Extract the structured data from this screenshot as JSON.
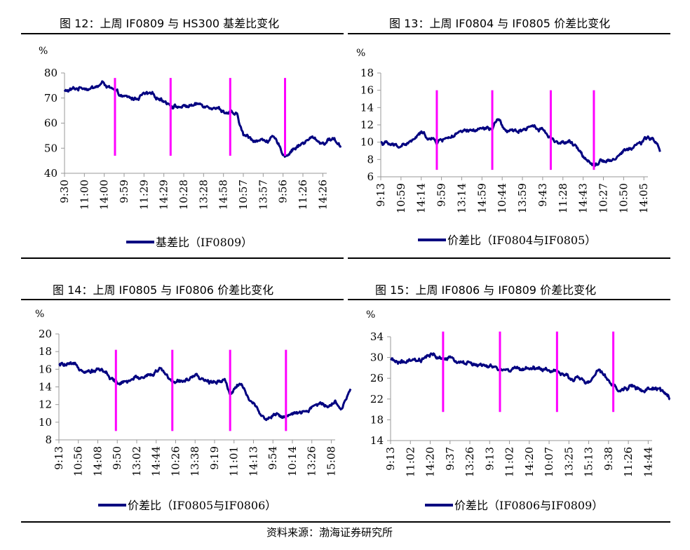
{
  "source": "资料来源：渤海证券研究所",
  "chart_data": [
    {
      "type": "line",
      "title": "图 12：上周 IF0809 与 HS300 基差比变化",
      "ylabel": "%",
      "ylim": [
        40,
        80
      ],
      "yticks": [
        "40",
        "50",
        "60",
        "70",
        "80"
      ],
      "xticks": [
        "9:30",
        "11:00",
        "14:00",
        "9:59",
        "11:29",
        "14:29",
        "10:28",
        "13:28",
        "14:58",
        "10:57",
        "13:57",
        "9:56",
        "11:26",
        "14:26"
      ],
      "day_markers": [
        2.54,
        5.34,
        8.34,
        11.1
      ],
      "marker_range": [
        47,
        78
      ],
      "n_points": 440,
      "series": [
        {
          "name": "基差比（IF0809）",
          "color": "#000080",
          "x": [
            0,
            0.5,
            1,
            1.5,
            2,
            2.54,
            3,
            3.5,
            4,
            4.5,
            5,
            5.34,
            5.8,
            6.3,
            7,
            7.5,
            8,
            8.34,
            8.7,
            9,
            9.5,
            10,
            10.5,
            11.1,
            11.5,
            12,
            12.5,
            13,
            13.5,
            13.9
          ],
          "values": [
            72.5,
            73.5,
            74.5,
            74,
            76,
            72,
            70,
            69.5,
            71.5,
            70.5,
            69.5,
            67.5,
            66.5,
            67,
            67.5,
            67,
            65,
            64,
            62.5,
            55,
            53.5,
            53,
            54,
            47,
            50,
            52,
            54,
            52,
            54,
            51
          ]
        }
      ],
      "legend": "bottom"
    },
    {
      "type": "line",
      "title": "图 13：上周 IF0804 与 IF0805 价差比变化",
      "ylabel": "%",
      "ylim": [
        6,
        18
      ],
      "yticks": [
        "6",
        "8",
        "10",
        "12",
        "14",
        "16",
        "18"
      ],
      "xticks": [
        "9:13",
        "10:59",
        "14:14",
        "9:59",
        "13:14",
        "14:59",
        "10:44",
        "13:59",
        "9:43",
        "11:28",
        "14:43",
        "10:27",
        "10:50",
        "14:05"
      ],
      "day_markers": [
        2.77,
        5.51,
        8.4,
        10.53
      ],
      "marker_range": [
        6.8,
        16
      ],
      "n_points": 440,
      "series": [
        {
          "name": "价差比（IF0804与IF0805）",
          "color": "#000080",
          "x": [
            0,
            0.7,
            1.5,
            2,
            2.77,
            3.2,
            4,
            4.5,
            5,
            5.51,
            5.8,
            6.3,
            7,
            7.5,
            8,
            8.4,
            8.8,
            9.3,
            10,
            10.53,
            10.9,
            11.5,
            12,
            12.5,
            13,
            13.4,
            13.8
          ],
          "values": [
            10,
            9.5,
            10,
            11,
            10,
            10.5,
            11,
            11.2,
            11.5,
            11.5,
            12.5,
            11,
            11.5,
            12,
            11.5,
            10.5,
            10,
            10,
            8.5,
            7.5,
            8,
            8,
            9,
            9.5,
            10.2,
            10.5,
            9
          ]
        }
      ],
      "legend": "bottom"
    },
    {
      "type": "line",
      "title": "图 14：上周 IF0805 与 IF0806 价差比变化",
      "ylabel": "%",
      "ylim": [
        8,
        20
      ],
      "yticks": [
        "8",
        "10",
        "12",
        "14",
        "16",
        "18",
        "20"
      ],
      "xticks": [
        "9:13",
        "10:56",
        "14:08",
        "9:50",
        "13:02",
        "14:44",
        "10:26",
        "13:38",
        "9:19",
        "11:01",
        "14:13",
        "9:54",
        "10:14",
        "13:26",
        "15:08"
      ],
      "day_markers": [
        2.93,
        5.83,
        8.8,
        11.67
      ],
      "marker_range": [
        9,
        18.2
      ],
      "n_points": 470,
      "series": [
        {
          "name": "价差比（IF0805与IF0806）",
          "color": "#000080",
          "x": [
            0,
            0.7,
            1.5,
            2.2,
            2.93,
            3.3,
            4,
            4.6,
            5.3,
            5.83,
            6.3,
            7,
            7.8,
            8.5,
            8.8,
            9.3,
            10,
            10.6,
            11.2,
            11.67,
            12,
            12.6,
            13.3,
            13.8,
            14.2,
            14.5,
            14.8,
            15
          ],
          "values": [
            16.5,
            16.3,
            16,
            16,
            14.5,
            14.3,
            15,
            15.5,
            16,
            14.5,
            14.8,
            15,
            14.5,
            15,
            13.3,
            14.5,
            12,
            10.5,
            11,
            10.5,
            10.8,
            11,
            12,
            12,
            12.5,
            11.5,
            13,
            13.5
          ]
        }
      ],
      "legend": "bottom"
    },
    {
      "type": "line",
      "title": "图 15：上周 IF0806 与 IF0809 价差比变化",
      "ylabel": "%",
      "ylim": [
        14,
        34
      ],
      "yticks": [
        "14",
        "18",
        "22",
        "26",
        "30",
        "34"
      ],
      "xticks": [
        "9:13",
        "11:02",
        "14:20",
        "9:37",
        "13:26",
        "9:13",
        "11:02",
        "14:20",
        "10:07",
        "13:25",
        "15:13",
        "9:38",
        "11:26",
        "14:44"
      ],
      "day_markers": [
        2.65,
        5.52,
        8.4,
        11.24
      ],
      "marker_range": [
        19.5,
        35
      ],
      "n_points": 450,
      "series": [
        {
          "name": "价差比（IF0806与IF0809）",
          "color": "#000080",
          "x": [
            0,
            0.7,
            1.5,
            2,
            2.65,
            3,
            3.8,
            4.5,
            5,
            5.52,
            6,
            6.8,
            7.5,
            8,
            8.4,
            8.8,
            9.5,
            10,
            10.5,
            11.24,
            11.6,
            12.2,
            12.8,
            13.5,
            13.9,
            14.1
          ],
          "values": [
            29.3,
            29,
            29.2,
            30.3,
            29.8,
            29.5,
            29,
            28.5,
            28,
            27.5,
            27.5,
            28,
            28,
            27.5,
            27.5,
            26,
            26,
            25,
            27.5,
            24.5,
            23.5,
            24.5,
            23.5,
            24,
            23,
            22
          ]
        }
      ],
      "legend": "bottom"
    }
  ],
  "colors": {
    "series": "#000080",
    "marker": "#FF00FF",
    "axis": "#999999"
  }
}
